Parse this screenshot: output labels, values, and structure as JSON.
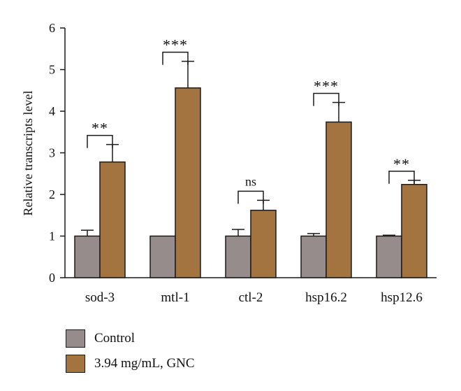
{
  "chart_data": {
    "type": "bar",
    "title": "",
    "xlabel": "",
    "ylabel": "Relative transcripts level",
    "ylim": [
      0,
      6
    ],
    "yticks": [
      "0",
      "1",
      "2",
      "3",
      "4",
      "5",
      "6"
    ],
    "categories": [
      "sod-3",
      "mtl-1",
      "ctl-2",
      "hsp16.2",
      "hsp12.6"
    ],
    "series": [
      {
        "name": "Control",
        "color": "#968c8b",
        "values": [
          1.0,
          1.0,
          1.0,
          1.0,
          1.0
        ],
        "errors": [
          0.14,
          0.0,
          0.16,
          0.06,
          0.02
        ]
      },
      {
        "name": "3.94 mg/mL, GNC",
        "color": "#a3743f",
        "values": [
          2.78,
          4.56,
          1.62,
          3.74,
          2.24
        ],
        "errors": [
          0.42,
          0.64,
          0.24,
          0.47,
          0.1
        ]
      }
    ],
    "significance": [
      "**",
      "***",
      "ns",
      "***",
      "**"
    ],
    "grid": false,
    "legend_position": "bottom-left"
  }
}
